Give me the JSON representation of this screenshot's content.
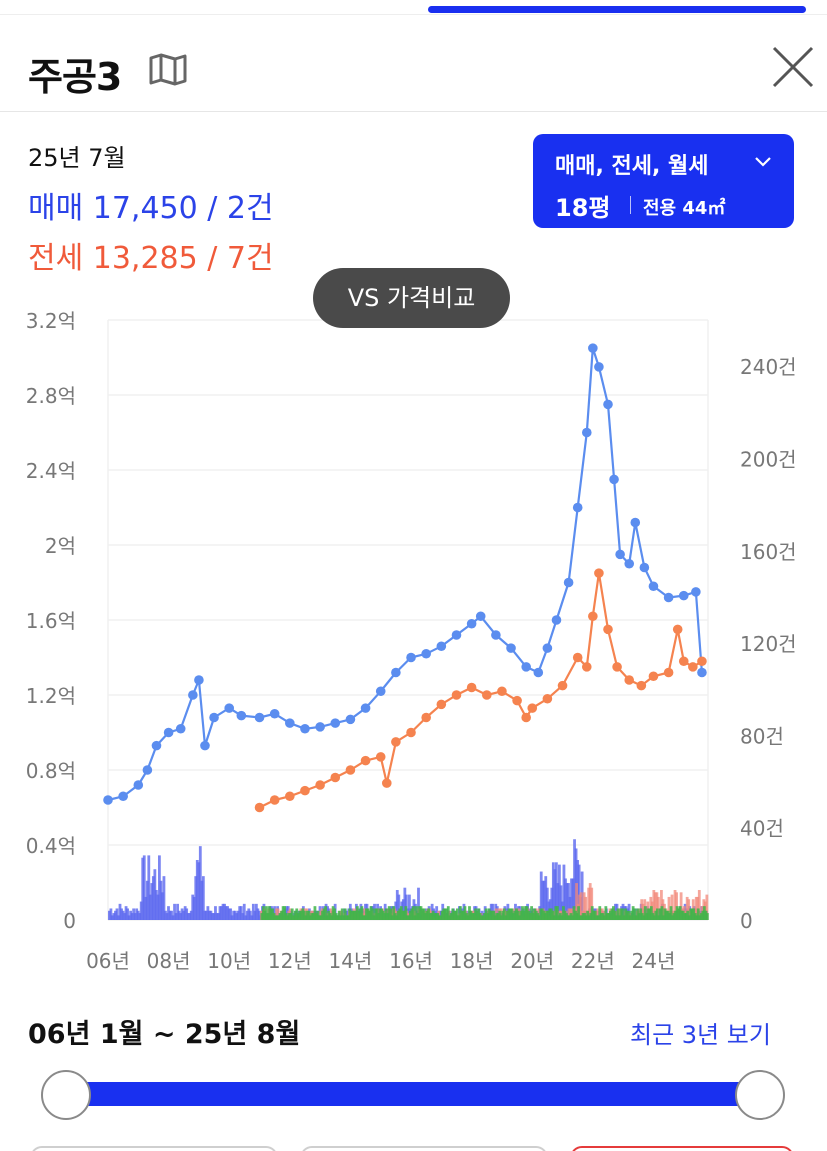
{
  "header": {
    "title": "주공3",
    "icons": {
      "map": "map-icon",
      "close": "close-icon"
    }
  },
  "summary": {
    "date": "25년 7월",
    "sale": "매매 17,450 / 2건",
    "jeonse": "전세 13,285 / 7건"
  },
  "filter": {
    "types": "매매, 전세, 월세",
    "size": "18평",
    "area": "전용 44㎡",
    "icon": "chevron-down-icon"
  },
  "compare_button": {
    "label": "VS 가격비교"
  },
  "range": {
    "label": "06년 1월 ~ 25년 8월",
    "recent_button": "최근 3년 보기"
  },
  "colors": {
    "sale": "#5b8def",
    "jeonse": "#f5834f",
    "sale_volume": "#5b68ef",
    "jeonse_volume": "#f2887a",
    "wolse_volume": "#3fb54a",
    "accent": "#1930f0"
  },
  "chart_data": {
    "type": "line",
    "x_unit": "year",
    "xlim": [
      2006,
      2025.8
    ],
    "x_ticks": [
      "06년",
      "08년",
      "10년",
      "12년",
      "14년",
      "16년",
      "18년",
      "20년",
      "22년",
      "24년"
    ],
    "y_left": {
      "unit": "억",
      "ylim": [
        0,
        3.2
      ],
      "ticks": [
        "0",
        "0.4억",
        "0.8억",
        "1.2억",
        "1.6억",
        "2억",
        "2.4억",
        "2.8억",
        "3.2억"
      ]
    },
    "y_right": {
      "unit": "건",
      "ylim": [
        0,
        260
      ],
      "ticks": [
        "0",
        "40건",
        "80건",
        "120건",
        "160건",
        "200건",
        "240건"
      ]
    },
    "grid": true,
    "series": [
      {
        "name": "매매",
        "axis": "left",
        "points": [
          [
            2006.0,
            0.64
          ],
          [
            2006.5,
            0.66
          ],
          [
            2007.0,
            0.72
          ],
          [
            2007.3,
            0.8
          ],
          [
            2007.6,
            0.93
          ],
          [
            2008.0,
            1.0
          ],
          [
            2008.4,
            1.02
          ],
          [
            2008.8,
            1.2
          ],
          [
            2009.0,
            1.28
          ],
          [
            2009.2,
            0.93
          ],
          [
            2009.5,
            1.08
          ],
          [
            2010.0,
            1.13
          ],
          [
            2010.4,
            1.09
          ],
          [
            2011.0,
            1.08
          ],
          [
            2011.5,
            1.1
          ],
          [
            2012.0,
            1.05
          ],
          [
            2012.5,
            1.02
          ],
          [
            2013.0,
            1.03
          ],
          [
            2013.5,
            1.05
          ],
          [
            2014.0,
            1.07
          ],
          [
            2014.5,
            1.13
          ],
          [
            2015.0,
            1.22
          ],
          [
            2015.5,
            1.32
          ],
          [
            2016.0,
            1.4
          ],
          [
            2016.5,
            1.42
          ],
          [
            2017.0,
            1.46
          ],
          [
            2017.5,
            1.52
          ],
          [
            2018.0,
            1.58
          ],
          [
            2018.3,
            1.62
          ],
          [
            2018.8,
            1.52
          ],
          [
            2019.3,
            1.45
          ],
          [
            2019.8,
            1.35
          ],
          [
            2020.2,
            1.32
          ],
          [
            2020.5,
            1.45
          ],
          [
            2020.8,
            1.6
          ],
          [
            2021.2,
            1.8
          ],
          [
            2021.5,
            2.2
          ],
          [
            2021.8,
            2.6
          ],
          [
            2022.0,
            3.05
          ],
          [
            2022.2,
            2.95
          ],
          [
            2022.5,
            2.75
          ],
          [
            2022.7,
            2.35
          ],
          [
            2022.9,
            1.95
          ],
          [
            2023.2,
            1.9
          ],
          [
            2023.4,
            2.12
          ],
          [
            2023.7,
            1.88
          ],
          [
            2024.0,
            1.78
          ],
          [
            2024.5,
            1.72
          ],
          [
            2025.0,
            1.73
          ],
          [
            2025.4,
            1.75
          ],
          [
            2025.6,
            1.32
          ]
        ]
      },
      {
        "name": "전세",
        "axis": "left",
        "points": [
          [
            2011.0,
            0.6
          ],
          [
            2011.5,
            0.64
          ],
          [
            2012.0,
            0.66
          ],
          [
            2012.5,
            0.69
          ],
          [
            2013.0,
            0.72
          ],
          [
            2013.5,
            0.76
          ],
          [
            2014.0,
            0.8
          ],
          [
            2014.5,
            0.85
          ],
          [
            2015.0,
            0.87
          ],
          [
            2015.2,
            0.73
          ],
          [
            2015.5,
            0.95
          ],
          [
            2016.0,
            1.0
          ],
          [
            2016.5,
            1.08
          ],
          [
            2017.0,
            1.15
          ],
          [
            2017.5,
            1.2
          ],
          [
            2018.0,
            1.24
          ],
          [
            2018.5,
            1.2
          ],
          [
            2019.0,
            1.22
          ],
          [
            2019.5,
            1.17
          ],
          [
            2019.8,
            1.08
          ],
          [
            2020.0,
            1.13
          ],
          [
            2020.5,
            1.18
          ],
          [
            2021.0,
            1.25
          ],
          [
            2021.5,
            1.4
          ],
          [
            2021.8,
            1.35
          ],
          [
            2022.0,
            1.62
          ],
          [
            2022.2,
            1.85
          ],
          [
            2022.5,
            1.55
          ],
          [
            2022.8,
            1.35
          ],
          [
            2023.2,
            1.28
          ],
          [
            2023.6,
            1.25
          ],
          [
            2024.0,
            1.3
          ],
          [
            2024.5,
            1.32
          ],
          [
            2024.8,
            1.55
          ],
          [
            2025.0,
            1.38
          ],
          [
            2025.3,
            1.35
          ],
          [
            2025.6,
            1.38
          ]
        ]
      }
    ],
    "volume_series": [
      {
        "name": "매매 거래량",
        "axis": "right"
      },
      {
        "name": "전세 거래량",
        "axis": "right"
      },
      {
        "name": "월세 거래량",
        "axis": "right"
      }
    ]
  }
}
